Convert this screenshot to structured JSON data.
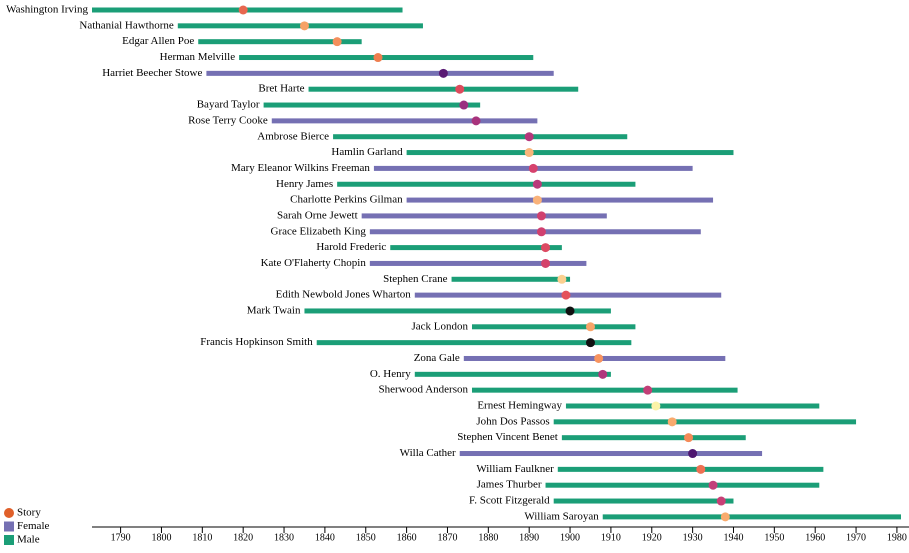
{
  "chart_data": {
    "type": "timeline",
    "categories": [
      "Washington Irving",
      "Nathanial Hawthorne",
      "Edgar Allen Poe",
      "Herman Melville",
      "Harriet Beecher Stowe",
      "Bret Harte",
      "Bayard Taylor",
      "Rose Terry Cooke",
      "Ambrose Bierce",
      "Hamlin Garland",
      "Mary Eleanor Wilkins Freeman",
      "Henry James",
      "Charlotte Perkins Gilman",
      "Sarah Orne Jewett",
      "Grace Elizabeth King",
      "Harold Frederic",
      "Kate O'Flaherty Chopin",
      "Stephen Crane",
      "Edith Newbold Jones Wharton",
      "Mark Twain",
      "Jack London",
      "Francis Hopkinson Smith",
      "Zona Gale",
      "O. Henry",
      "Sherwood Anderson",
      "Ernest Hemingway",
      "John Dos Passos",
      "Stephen Vincent Benet",
      "Willa Cather",
      "William Faulkner",
      "James Thurber",
      "F. Scott Fitzgerald",
      "William Saroyan"
    ],
    "start": [
      1783,
      1804,
      1809,
      1819,
      1811,
      1836,
      1825,
      1827,
      1842,
      1860,
      1852,
      1843,
      1860,
      1849,
      1851,
      1856,
      1851,
      1871,
      1862,
      1835,
      1876,
      1838,
      1874,
      1862,
      1876,
      1899,
      1896,
      1898,
      1873,
      1897,
      1894,
      1896,
      1908
    ],
    "end": [
      1859,
      1864,
      1849,
      1891,
      1896,
      1902,
      1878,
      1892,
      1914,
      1940,
      1930,
      1916,
      1935,
      1909,
      1932,
      1898,
      1904,
      1900,
      1937,
      1910,
      1916,
      1915,
      1938,
      1910,
      1941,
      1961,
      1970,
      1943,
      1947,
      1962,
      1961,
      1940,
      1981
    ],
    "story": [
      1820,
      1835,
      1843,
      1853,
      1869,
      1873,
      1874,
      1877,
      1890,
      1890,
      1891,
      1892,
      1892,
      1893,
      1893,
      1894,
      1894,
      1898,
      1899,
      1900,
      1905,
      1905,
      1907,
      1908,
      1919,
      1921,
      1925,
      1929,
      1930,
      1932,
      1935,
      1937,
      1938
    ],
    "story_colors": [
      "#e8674f",
      "#f6a266",
      "#f48f5c",
      "#ee7e4f",
      "#5a1a74",
      "#dd4a5c",
      "#9a2f80",
      "#a8337c",
      "#b5377b",
      "#f9b67a",
      "#d6426d",
      "#b83a7a",
      "#f9b27a",
      "#d0406f",
      "#d0406f",
      "#dc4a62",
      "#d4436b",
      "#fbd090",
      "#e4525b",
      "#111111",
      "#f8a56a",
      "#111111",
      "#f7945f",
      "#b0367c",
      "#c23f77",
      "#fbf3a8",
      "#f9aa6d",
      "#f48a58",
      "#4e1670",
      "#ee7052",
      "#c2407a",
      "#c83f76",
      "#f9ab6d"
    ],
    "gender": [
      "Male",
      "Male",
      "Male",
      "Male",
      "Female",
      "Male",
      "Male",
      "Female",
      "Male",
      "Male",
      "Female",
      "Male",
      "Female",
      "Female",
      "Female",
      "Male",
      "Female",
      "Male",
      "Female",
      "Male",
      "Male",
      "Male",
      "Female",
      "Male",
      "Male",
      "Male",
      "Male",
      "Male",
      "Female",
      "Male",
      "Male",
      "Male",
      "Male"
    ],
    "legend": [
      {
        "name": "Story",
        "color": "#e0602a",
        "shape": "circle"
      },
      {
        "name": "Female",
        "color": "#7570b3",
        "shape": "square"
      },
      {
        "name": "Male",
        "color": "#1b9e77",
        "shape": "square"
      }
    ],
    "xlim": [
      1783,
      1981
    ],
    "xticks": [
      1790,
      1800,
      1810,
      1820,
      1830,
      1840,
      1850,
      1860,
      1870,
      1880,
      1890,
      1900,
      1910,
      1920,
      1930,
      1940,
      1950,
      1960,
      1970,
      1980
    ]
  }
}
